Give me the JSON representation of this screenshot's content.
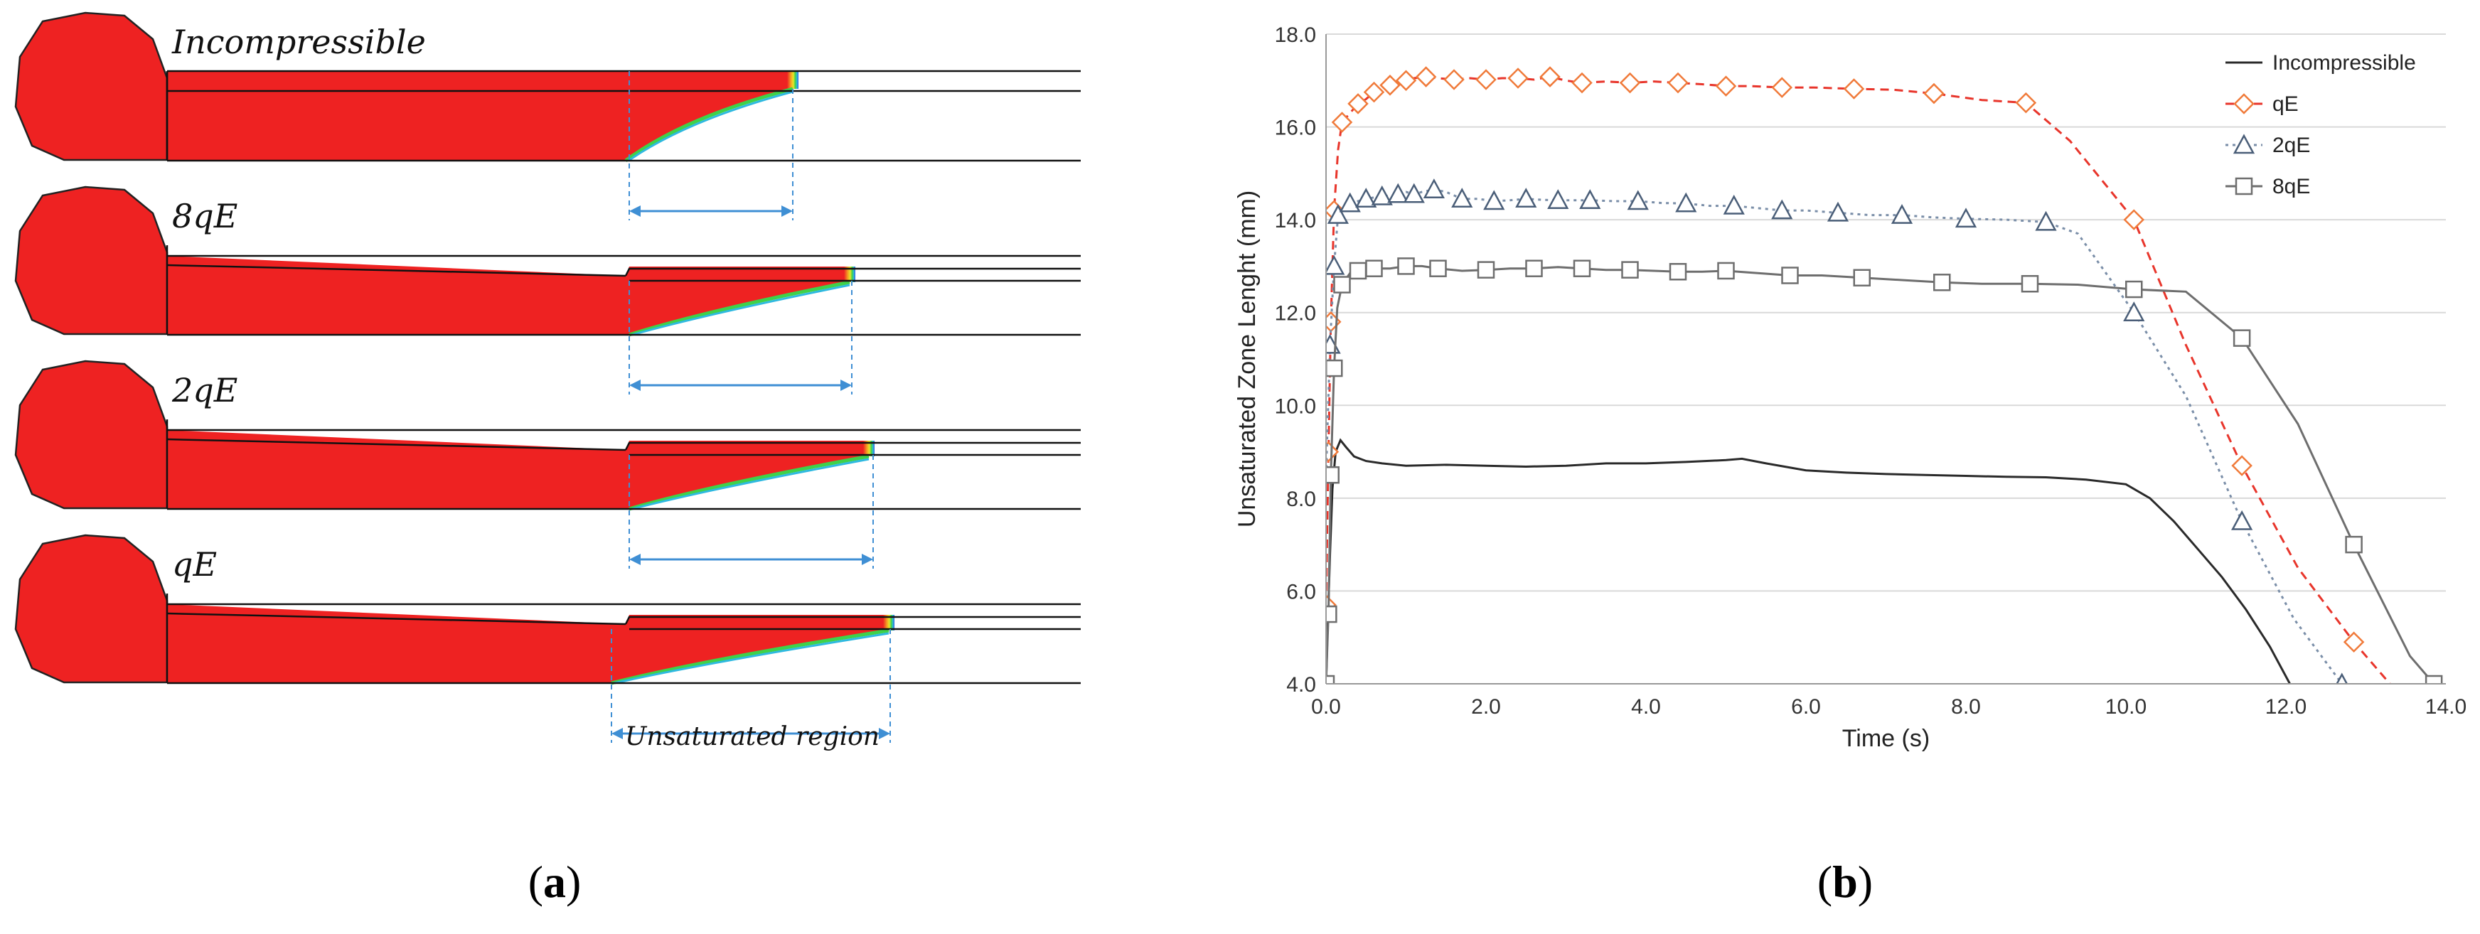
{
  "figure": {
    "caption_a": {
      "open": "(",
      "letter": "a",
      "close": ")"
    },
    "caption_b": {
      "open": "(",
      "letter": "b",
      "close": ")"
    }
  },
  "panel_a": {
    "fill_color": "#ee2222",
    "rows": [
      {
        "label": "Incompressible"
      },
      {
        "label": "8qE"
      },
      {
        "label": "2qE"
      },
      {
        "label": "qE"
      }
    ],
    "bottom_annotation": "Unsaturated region",
    "arrow_color": "#3f8fd4"
  },
  "chart_data": {
    "type": "line",
    "title": "",
    "xlabel": "Time (s)",
    "ylabel": "Unsaturated Zone Lenght (mm)",
    "xlim": [
      0,
      14
    ],
    "ylim": [
      4,
      18
    ],
    "xticks": [
      0,
      2,
      4,
      6,
      8,
      10,
      12,
      14
    ],
    "yticks": [
      4,
      6,
      8,
      10,
      12,
      14,
      16,
      18
    ],
    "xtick_labels": [
      "0.0",
      "2.0",
      "4.0",
      "6.0",
      "8.0",
      "10.0",
      "12.0",
      "14.0"
    ],
    "ytick_labels": [
      "4.0",
      "6.0",
      "8.0",
      "10.0",
      "12.0",
      "14.0",
      "16.0",
      "18.0"
    ],
    "grid": "horizontal",
    "legend_position": "top-right",
    "series": [
      {
        "name": "Incompressible",
        "color": "#2a2a2a",
        "dash": "solid",
        "marker": "none",
        "x": [
          0.0,
          0.02,
          0.05,
          0.08,
          0.12,
          0.18,
          0.25,
          0.35,
          0.5,
          0.7,
          1.0,
          1.5,
          2.0,
          2.5,
          3.0,
          3.5,
          4.0,
          4.5,
          5.0,
          5.2,
          5.5,
          6.0,
          6.5,
          7.0,
          7.5,
          8.0,
          8.5,
          9.0,
          9.5,
          10.0,
          10.3,
          10.6,
          10.9,
          11.2,
          11.5,
          11.8,
          12.05
        ],
        "y": [
          4.0,
          5.2,
          6.8,
          8.2,
          9.0,
          9.25,
          9.1,
          8.9,
          8.8,
          8.75,
          8.7,
          8.72,
          8.7,
          8.68,
          8.7,
          8.75,
          8.75,
          8.78,
          8.82,
          8.85,
          8.75,
          8.6,
          8.55,
          8.52,
          8.5,
          8.48,
          8.46,
          8.45,
          8.4,
          8.3,
          8.0,
          7.5,
          6.9,
          6.3,
          5.6,
          4.8,
          4.0
        ]
      },
      {
        "name": "qE",
        "color": "#e8352b",
        "marker_color": "#f07a3a",
        "dash": "dashed",
        "marker": "diamond",
        "x": [
          0.0,
          0.03,
          0.06,
          0.1,
          0.15,
          0.2,
          0.3,
          0.4,
          0.5,
          0.6,
          0.7,
          0.8,
          0.9,
          1.0,
          1.1,
          1.25,
          1.4,
          1.6,
          1.8,
          2.0,
          2.2,
          2.4,
          2.6,
          2.8,
          3.0,
          3.2,
          3.5,
          3.8,
          4.1,
          4.4,
          4.7,
          5.0,
          5.3,
          5.7,
          6.1,
          6.6,
          7.1,
          7.6,
          8.2,
          8.75,
          9.3,
          10.1,
          10.75,
          11.45,
          12.15,
          12.85,
          13.3
        ],
        "y": [
          5.7,
          9.0,
          11.8,
          14.2,
          15.5,
          16.1,
          16.3,
          16.5,
          16.6,
          16.75,
          16.8,
          16.9,
          16.95,
          17.0,
          17.05,
          17.08,
          17.05,
          17.02,
          17.05,
          17.02,
          17.05,
          17.05,
          17.02,
          17.08,
          17.0,
          16.95,
          16.98,
          16.95,
          16.98,
          16.95,
          16.92,
          16.88,
          16.88,
          16.85,
          16.85,
          16.82,
          16.8,
          16.72,
          16.58,
          16.52,
          15.7,
          14.0,
          11.3,
          8.7,
          6.5,
          4.9,
          4.0
        ]
      },
      {
        "name": "2qE",
        "color": "#7a8ea8",
        "marker_color": "#4a5e78",
        "dash": "dotted",
        "marker": "triangle",
        "x": [
          0.0,
          0.05,
          0.1,
          0.15,
          0.22,
          0.3,
          0.4,
          0.5,
          0.6,
          0.7,
          0.8,
          0.9,
          1.0,
          1.1,
          1.2,
          1.35,
          1.5,
          1.7,
          1.9,
          2.1,
          2.3,
          2.5,
          2.7,
          2.9,
          3.1,
          3.3,
          3.6,
          3.9,
          4.2,
          4.5,
          4.8,
          5.1,
          5.4,
          5.7,
          6.0,
          6.4,
          6.8,
          7.2,
          7.6,
          8.0,
          8.5,
          9.0,
          9.4,
          10.1,
          10.75,
          11.45,
          12.1,
          12.7
        ],
        "y": [
          8.5,
          11.3,
          13.0,
          14.1,
          14.25,
          14.35,
          14.4,
          14.45,
          14.48,
          14.5,
          14.52,
          14.55,
          14.6,
          14.55,
          14.6,
          14.65,
          14.6,
          14.45,
          14.45,
          14.4,
          14.42,
          14.45,
          14.43,
          14.42,
          14.42,
          14.42,
          14.4,
          14.4,
          14.36,
          14.35,
          14.3,
          14.3,
          14.25,
          14.2,
          14.2,
          14.15,
          14.1,
          14.1,
          14.05,
          14.02,
          14.0,
          13.95,
          13.7,
          12.0,
          10.2,
          7.5,
          5.4,
          4.0
        ]
      },
      {
        "name": "8qE",
        "color": "#6e6e6e",
        "marker_color": "#6e6e6e",
        "dash": "solid",
        "marker": "square",
        "x": [
          0.0,
          0.03,
          0.06,
          0.1,
          0.14,
          0.2,
          0.3,
          0.4,
          0.5,
          0.6,
          0.8,
          1.0,
          1.2,
          1.4,
          1.7,
          2.0,
          2.3,
          2.6,
          2.9,
          3.2,
          3.5,
          3.8,
          4.1,
          4.4,
          4.7,
          5.0,
          5.4,
          5.8,
          6.2,
          6.7,
          7.2,
          7.7,
          8.2,
          8.8,
          9.4,
          10.1,
          10.75,
          11.45,
          12.15,
          12.85,
          13.55,
          13.85
        ],
        "y": [
          4.0,
          5.5,
          8.5,
          10.8,
          12.1,
          12.6,
          12.85,
          12.9,
          12.95,
          12.95,
          12.95,
          13.0,
          13.0,
          12.95,
          12.9,
          12.92,
          12.95,
          12.95,
          12.98,
          12.95,
          12.92,
          12.92,
          12.9,
          12.88,
          12.88,
          12.9,
          12.85,
          12.8,
          12.8,
          12.75,
          12.7,
          12.65,
          12.62,
          12.62,
          12.6,
          12.5,
          12.45,
          11.45,
          9.6,
          7.0,
          4.6,
          4.0
        ]
      }
    ]
  }
}
